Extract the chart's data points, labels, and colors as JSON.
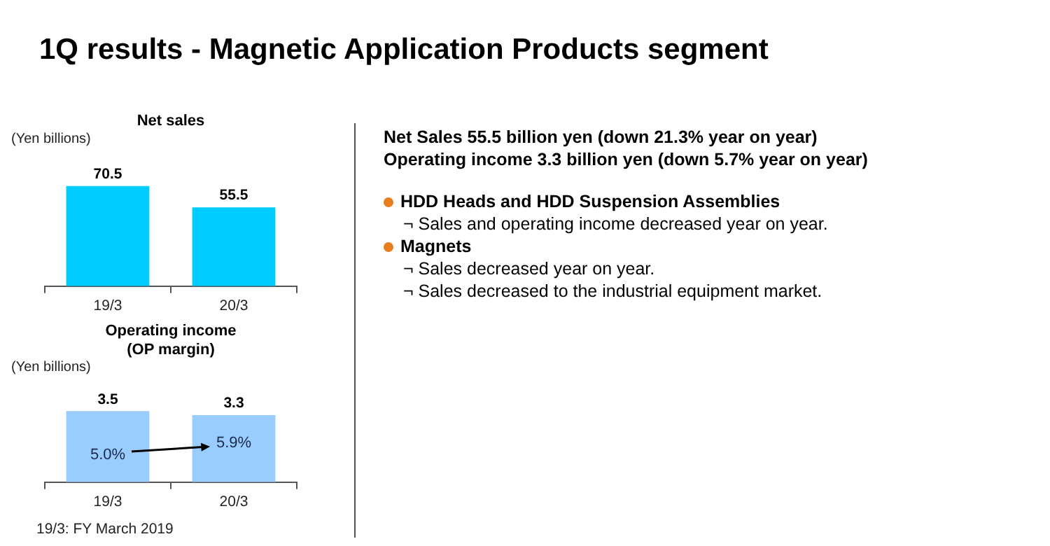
{
  "chart_data": [
    {
      "type": "other",
      "title": "1Q results - Magnetic Application Products segment",
      "annotations": [
        "Net Sales   55.5 billion  yen (down  21.3% year on year)",
        "Operating income   3.3 billion  yen (down 5.7% year on year)",
        "HDD Heads and HDD Suspension Assemblies",
        "¬ Sales and operating income decreased year on year.",
        "Magnets",
        "¬ Sales decreased year on year.",
        "¬ Sales decreased to the industrial equipment  market."
      ]
    },
    {
      "type": "bar",
      "title": "Net sales",
      "ylabel": "(Yen billions)",
      "categories": [
        "19/3",
        "20/3"
      ],
      "values": [
        70.5,
        55.5
      ],
      "color": "#00ccff",
      "tick_labels": "x",
      "data_labels": true,
      "grid": false,
      "legend": false
    },
    {
      "type": "bar",
      "title": [
        "Operating income",
        "(OP margin)"
      ],
      "ylabel": "(Yen billions)",
      "categories": [
        "19/3",
        "20/3"
      ],
      "values": [
        3.5,
        3.3
      ],
      "color": "#99ccff",
      "tick_labels": "x",
      "data_labels": true,
      "grid": false,
      "legend": false,
      "annotations": [
        "5.0%",
        "5.9%",
        "19/3: FY March 2019"
      ]
    }
  ]
}
